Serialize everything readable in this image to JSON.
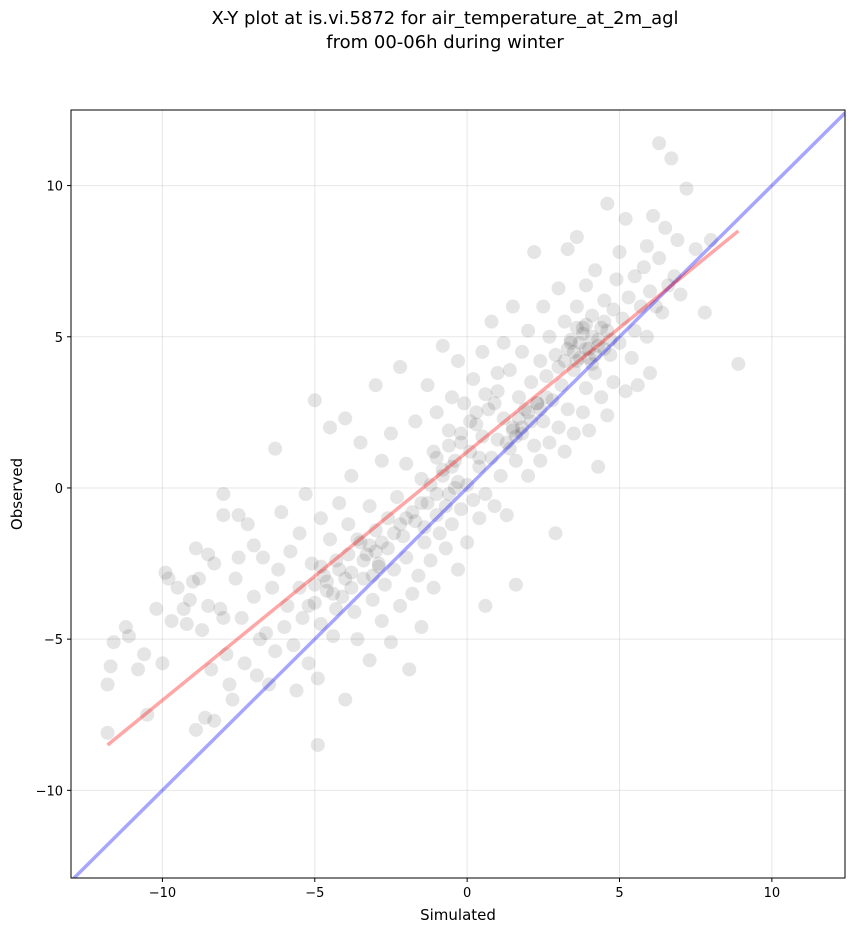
{
  "chart_data": {
    "type": "scatter",
    "title_line1": "X-Y plot at is.vi.5872 for air_temperature_at_2m_agl",
    "title_line2": "from 00-06h during winter",
    "xlabel": "Simulated",
    "ylabel": "Observed",
    "xlim": [
      -13,
      12.4
    ],
    "ylim": [
      -12.9,
      12.5
    ],
    "xticks": [
      -10,
      -5,
      0,
      5,
      10
    ],
    "yticks": [
      -10,
      -5,
      0,
      5,
      10
    ],
    "xtick_labels": [
      "−10",
      "−5",
      "0",
      "5",
      "10"
    ],
    "ytick_labels": [
      "−10",
      "−5",
      "0",
      "5",
      "10"
    ],
    "grid": true,
    "points": [
      [
        -11.8,
        -8.1
      ],
      [
        -11.8,
        -6.5
      ],
      [
        -11.7,
        -5.9
      ],
      [
        -11.6,
        -5.1
      ],
      [
        -11.2,
        -4.6
      ],
      [
        -11.1,
        -4.9
      ],
      [
        -10.8,
        -6.0
      ],
      [
        -10.6,
        -5.5
      ],
      [
        -10.5,
        -7.5
      ],
      [
        -10.2,
        -4.0
      ],
      [
        -10.0,
        -5.8
      ],
      [
        -9.9,
        -2.8
      ],
      [
        -9.8,
        -3.0
      ],
      [
        -9.7,
        -4.4
      ],
      [
        -9.5,
        -3.3
      ],
      [
        -9.3,
        -4.0
      ],
      [
        -9.2,
        -4.5
      ],
      [
        -9.1,
        -3.7
      ],
      [
        -9.0,
        -3.1
      ],
      [
        -8.9,
        -2.0
      ],
      [
        -8.9,
        -8.0
      ],
      [
        -8.8,
        -3.0
      ],
      [
        -8.7,
        -4.7
      ],
      [
        -8.6,
        -7.6
      ],
      [
        -8.5,
        -2.2
      ],
      [
        -8.5,
        -3.9
      ],
      [
        -8.4,
        -6.0
      ],
      [
        -8.3,
        -7.7
      ],
      [
        -8.3,
        -2.5
      ],
      [
        -8.1,
        -4.0
      ],
      [
        -8.0,
        -0.2
      ],
      [
        -8.0,
        -0.9
      ],
      [
        -8.0,
        -4.3
      ],
      [
        -7.9,
        -5.5
      ],
      [
        -7.8,
        -6.5
      ],
      [
        -7.7,
        -7.0
      ],
      [
        -7.6,
        -3.0
      ],
      [
        -7.5,
        -2.3
      ],
      [
        -7.5,
        -0.9
      ],
      [
        -7.4,
        -4.3
      ],
      [
        -7.3,
        -5.8
      ],
      [
        -7.2,
        -1.2
      ],
      [
        -7.0,
        -1.9
      ],
      [
        -7.0,
        -3.6
      ],
      [
        -6.9,
        -6.2
      ],
      [
        -6.8,
        -5.0
      ],
      [
        -6.7,
        -2.3
      ],
      [
        -6.6,
        -4.8
      ],
      [
        -6.5,
        -6.5
      ],
      [
        -6.4,
        -3.3
      ],
      [
        -6.3,
        1.3
      ],
      [
        -6.3,
        -5.4
      ],
      [
        -6.2,
        -2.7
      ],
      [
        -6.1,
        -0.8
      ],
      [
        -6.0,
        -4.6
      ],
      [
        -5.9,
        -3.9
      ],
      [
        -5.8,
        -2.1
      ],
      [
        -5.7,
        -5.2
      ],
      [
        -5.6,
        -6.7
      ],
      [
        -5.5,
        -1.5
      ],
      [
        -5.5,
        -3.3
      ],
      [
        -5.4,
        -4.3
      ],
      [
        -5.3,
        -0.2
      ],
      [
        -5.2,
        -5.8
      ],
      [
        -5.1,
        -2.5
      ],
      [
        -5.0,
        -3.8
      ],
      [
        -5.0,
        2.9
      ],
      [
        -4.9,
        -6.3
      ],
      [
        -4.9,
        -8.5
      ],
      [
        -4.8,
        -1.0
      ],
      [
        -4.8,
        -4.5
      ],
      [
        -4.7,
        -2.9
      ],
      [
        -4.6,
        -3.4
      ],
      [
        -4.5,
        2.0
      ],
      [
        -4.5,
        -1.7
      ],
      [
        -4.4,
        -4.9
      ],
      [
        -4.3,
        -2.4
      ],
      [
        -4.2,
        -0.5
      ],
      [
        -4.1,
        -3.6
      ],
      [
        -4.0,
        2.3
      ],
      [
        -4.0,
        -7.0
      ],
      [
        -3.9,
        -1.2
      ],
      [
        -3.8,
        -2.8
      ],
      [
        -3.8,
        0.4
      ],
      [
        -3.7,
        -4.1
      ],
      [
        -3.6,
        -5.0
      ],
      [
        -3.5,
        -1.8
      ],
      [
        -3.5,
        1.5
      ],
      [
        -3.4,
        -3.0
      ],
      [
        -3.3,
        -2.2
      ],
      [
        -3.2,
        -0.6
      ],
      [
        -3.2,
        -5.7
      ],
      [
        -3.1,
        -3.7
      ],
      [
        -3.0,
        3.4
      ],
      [
        -3.0,
        -1.4
      ],
      [
        -2.9,
        -2.5
      ],
      [
        -2.8,
        0.9
      ],
      [
        -2.8,
        -4.4
      ],
      [
        -2.7,
        -3.2
      ],
      [
        -2.6,
        -1.0
      ],
      [
        -2.5,
        1.8
      ],
      [
        -2.5,
        -5.1
      ],
      [
        -2.4,
        -2.7
      ],
      [
        -2.3,
        -0.3
      ],
      [
        -2.2,
        -3.9
      ],
      [
        -2.2,
        4.0
      ],
      [
        -2.1,
        -1.6
      ],
      [
        -2.0,
        -2.3
      ],
      [
        -2.0,
        0.8
      ],
      [
        -1.9,
        -6.0
      ],
      [
        -1.8,
        -3.5
      ],
      [
        -1.7,
        2.2
      ],
      [
        -1.7,
        -1.1
      ],
      [
        -1.6,
        -2.9
      ],
      [
        -1.5,
        0.3
      ],
      [
        -1.5,
        -4.6
      ],
      [
        -1.4,
        -1.8
      ],
      [
        -1.3,
        3.4
      ],
      [
        -1.3,
        -0.5
      ],
      [
        -1.2,
        -2.4
      ],
      [
        -1.1,
        1.2
      ],
      [
        -1.1,
        -3.3
      ],
      [
        -1.0,
        -0.9
      ],
      [
        -1.0,
        2.5
      ],
      [
        -0.9,
        -1.5
      ],
      [
        -0.8,
        0.6
      ],
      [
        -0.8,
        4.7
      ],
      [
        -0.7,
        -2.0
      ],
      [
        -0.6,
        1.9
      ],
      [
        -0.6,
        -0.2
      ],
      [
        -0.5,
        3.0
      ],
      [
        -0.5,
        -1.2
      ],
      [
        -0.4,
        0.9
      ],
      [
        -0.3,
        -2.7
      ],
      [
        -0.3,
        4.2
      ],
      [
        -0.2,
        1.5
      ],
      [
        -0.2,
        -0.7
      ],
      [
        -0.1,
        2.8
      ],
      [
        0.0,
        0.1
      ],
      [
        0.0,
        -1.8
      ],
      [
        0.1,
        1.2
      ],
      [
        0.2,
        3.6
      ],
      [
        0.2,
        -0.4
      ],
      [
        0.3,
        2.1
      ],
      [
        0.4,
        -1.0
      ],
      [
        0.4,
        0.7
      ],
      [
        0.5,
        4.5
      ],
      [
        0.5,
        1.7
      ],
      [
        0.6,
        -0.2
      ],
      [
        0.6,
        -3.9
      ],
      [
        0.7,
        2.6
      ],
      [
        0.8,
        1.0
      ],
      [
        0.8,
        5.5
      ],
      [
        0.9,
        -0.6
      ],
      [
        1.0,
        3.2
      ],
      [
        1.0,
        1.6
      ],
      [
        1.1,
        0.4
      ],
      [
        1.2,
        4.8
      ],
      [
        1.2,
        2.3
      ],
      [
        1.3,
        -0.9
      ],
      [
        1.4,
        1.3
      ],
      [
        1.4,
        3.9
      ],
      [
        1.5,
        2.0
      ],
      [
        1.5,
        6.0
      ],
      [
        1.6,
        -3.2
      ],
      [
        1.6,
        0.9
      ],
      [
        1.7,
        3.0
      ],
      [
        1.8,
        4.5
      ],
      [
        1.8,
        1.8
      ],
      [
        1.9,
        2.6
      ],
      [
        2.0,
        0.4
      ],
      [
        2.0,
        5.2
      ],
      [
        2.1,
        3.5
      ],
      [
        2.2,
        1.4
      ],
      [
        2.2,
        7.8
      ],
      [
        2.3,
        2.8
      ],
      [
        2.4,
        4.2
      ],
      [
        2.4,
        0.9
      ],
      [
        2.5,
        6.0
      ],
      [
        2.5,
        2.2
      ],
      [
        2.6,
        3.7
      ],
      [
        2.7,
        1.5
      ],
      [
        2.7,
        5.0
      ],
      [
        2.8,
        2.9
      ],
      [
        2.9,
        -1.5
      ],
      [
        2.9,
        4.4
      ],
      [
        3.0,
        2.0
      ],
      [
        3.0,
        6.6
      ],
      [
        3.1,
        3.4
      ],
      [
        3.2,
        1.2
      ],
      [
        3.2,
        5.5
      ],
      [
        3.3,
        7.9
      ],
      [
        3.3,
        2.6
      ],
      [
        3.4,
        4.8
      ],
      [
        3.5,
        3.9
      ],
      [
        3.5,
        1.8
      ],
      [
        3.6,
        6.0
      ],
      [
        3.6,
        8.3
      ],
      [
        3.7,
        4.3
      ],
      [
        3.8,
        2.5
      ],
      [
        3.8,
        5.3
      ],
      [
        3.9,
        3.3
      ],
      [
        3.9,
        6.7
      ],
      [
        4.0,
        4.6
      ],
      [
        4.0,
        1.9
      ],
      [
        4.1,
        5.7
      ],
      [
        4.2,
        3.8
      ],
      [
        4.2,
        7.2
      ],
      [
        4.3,
        4.9
      ],
      [
        4.3,
        0.7
      ],
      [
        4.4,
        3.0
      ],
      [
        4.5,
        5.5
      ],
      [
        4.5,
        6.2
      ],
      [
        4.6,
        2.4
      ],
      [
        4.6,
        9.4
      ],
      [
        4.7,
        4.4
      ],
      [
        4.8,
        5.9
      ],
      [
        4.8,
        3.5
      ],
      [
        4.9,
        6.9
      ],
      [
        5.0,
        4.8
      ],
      [
        5.0,
        7.8
      ],
      [
        5.1,
        5.6
      ],
      [
        5.2,
        3.2
      ],
      [
        5.2,
        8.9
      ],
      [
        5.3,
        6.3
      ],
      [
        5.4,
        4.3
      ],
      [
        5.5,
        7.0
      ],
      [
        5.5,
        5.2
      ],
      [
        5.6,
        3.4
      ],
      [
        5.7,
        6.0
      ],
      [
        5.8,
        7.3
      ],
      [
        5.9,
        8.0
      ],
      [
        5.9,
        5.0
      ],
      [
        6.0,
        6.5
      ],
      [
        6.0,
        3.8
      ],
      [
        6.1,
        9.0
      ],
      [
        6.2,
        6.0
      ],
      [
        6.3,
        7.6
      ],
      [
        6.3,
        11.4
      ],
      [
        6.4,
        5.8
      ],
      [
        6.5,
        8.6
      ],
      [
        6.6,
        6.7
      ],
      [
        6.7,
        10.9
      ],
      [
        6.8,
        7.0
      ],
      [
        6.9,
        8.2
      ],
      [
        7.0,
        6.4
      ],
      [
        7.2,
        9.9
      ],
      [
        7.5,
        7.9
      ],
      [
        7.8,
        5.8
      ],
      [
        8.0,
        8.2
      ],
      [
        8.9,
        4.1
      ],
      [
        -2.8,
        -1.8
      ],
      [
        -3.0,
        -2.1
      ],
      [
        -3.2,
        -1.9
      ],
      [
        -2.6,
        -2.0
      ],
      [
        -3.4,
        -2.4
      ],
      [
        -2.4,
        -1.5
      ],
      [
        -2.9,
        -2.6
      ],
      [
        -3.6,
        -1.7
      ],
      [
        -2.2,
        -1.2
      ],
      [
        -3.1,
        -2.9
      ],
      [
        -4.0,
        -3.0
      ],
      [
        -4.2,
        -2.7
      ],
      [
        -3.8,
        -3.3
      ],
      [
        -4.4,
        -3.5
      ],
      [
        -3.9,
        -2.2
      ],
      [
        -4.6,
        -3.1
      ],
      [
        -5.0,
        -3.2
      ],
      [
        -4.8,
        -2.6
      ],
      [
        -5.2,
        -3.9
      ],
      [
        -4.3,
        -4.0
      ],
      [
        -1.5,
        -0.5
      ],
      [
        -1.2,
        0.1
      ],
      [
        -1.0,
        -0.2
      ],
      [
        -0.8,
        0.4
      ],
      [
        -0.5,
        0.7
      ],
      [
        -1.8,
        -0.8
      ],
      [
        -2.0,
        -1.0
      ],
      [
        -0.3,
        0.2
      ],
      [
        -1.4,
        -1.3
      ],
      [
        -0.7,
        -0.6
      ],
      [
        1.5,
        1.9
      ],
      [
        1.7,
        2.3
      ],
      [
        1.3,
        1.5
      ],
      [
        2.0,
        2.5
      ],
      [
        2.3,
        2.8
      ],
      [
        1.8,
        2.0
      ],
      [
        2.6,
        3.0
      ],
      [
        2.4,
        2.6
      ],
      [
        1.6,
        1.7
      ],
      [
        2.1,
        2.2
      ],
      [
        3.5,
        4.5
      ],
      [
        3.7,
        4.8
      ],
      [
        3.9,
        4.6
      ],
      [
        4.1,
        5.0
      ],
      [
        3.6,
        4.2
      ],
      [
        4.3,
        4.7
      ],
      [
        3.8,
        5.1
      ],
      [
        4.0,
        4.3
      ],
      [
        4.4,
        5.3
      ],
      [
        3.4,
        4.9
      ],
      [
        4.2,
        4.4
      ],
      [
        3.3,
        4.6
      ],
      [
        4.6,
        5.2
      ],
      [
        3.9,
        5.4
      ],
      [
        4.1,
        4.1
      ],
      [
        3.6,
        5.3
      ],
      [
        4.5,
        4.6
      ],
      [
        3.2,
        4.2
      ],
      [
        4.7,
        4.9
      ],
      [
        3.0,
        4.0
      ],
      [
        -0.6,
        1.4
      ],
      [
        -0.2,
        1.8
      ],
      [
        0.3,
        2.5
      ],
      [
        0.6,
        3.1
      ],
      [
        1.0,
        3.8
      ],
      [
        0.1,
        2.2
      ],
      [
        -1.0,
        1.0
      ],
      [
        0.9,
        2.8
      ],
      [
        0.4,
        1.0
      ],
      [
        -0.4,
        0.0
      ]
    ],
    "reference_line": {
      "from": [
        -13,
        -13
      ],
      "to": [
        12.4,
        12.4
      ],
      "color": "#0000ff"
    },
    "fit_line": {
      "from": [
        -11.8,
        -8.5
      ],
      "to": [
        8.9,
        8.5
      ],
      "color": "#ff0000"
    },
    "point_color": "#000000",
    "point_alpha": 0.1
  }
}
